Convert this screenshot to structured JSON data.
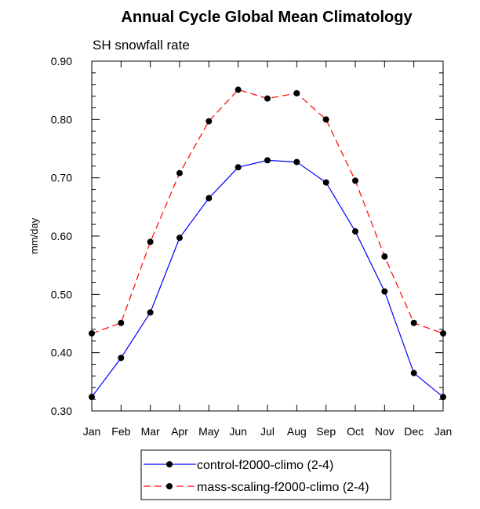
{
  "chart_data": {
    "type": "line",
    "title": "Annual Cycle Global Mean Climatology",
    "subtitle": "SH snowfall rate",
    "xlabel": "",
    "ylabel": "mm/day",
    "categories": [
      "Jan",
      "Feb",
      "Mar",
      "Apr",
      "May",
      "Jun",
      "Jul",
      "Aug",
      "Sep",
      "Oct",
      "Nov",
      "Dec",
      "Jan"
    ],
    "ylim": [
      0.3,
      0.9
    ],
    "yticks": [
      "0.30",
      "0.40",
      "0.50",
      "0.60",
      "0.70",
      "0.80",
      "0.90"
    ],
    "grid": false,
    "legend_position": "bottom",
    "series": [
      {
        "name": "control-f2000-climo (2-4)",
        "color": "#0000ff",
        "dash": "solid",
        "marker": "circle",
        "values": [
          0.324,
          0.391,
          0.469,
          0.597,
          0.665,
          0.718,
          0.73,
          0.727,
          0.692,
          0.608,
          0.505,
          0.365,
          0.324
        ]
      },
      {
        "name": "mass-scaling-f2000-climo (2-4)",
        "color": "#ff0000",
        "dash": "dashed",
        "marker": "circle",
        "values": [
          0.433,
          0.451,
          0.59,
          0.708,
          0.797,
          0.851,
          0.836,
          0.845,
          0.8,
          0.695,
          0.565,
          0.451,
          0.433
        ]
      }
    ]
  }
}
